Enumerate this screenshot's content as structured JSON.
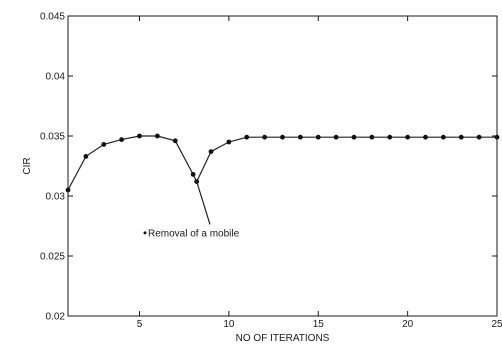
{
  "chart_data": {
    "type": "line",
    "title": "",
    "xlabel": "NO OF ITERATIONS",
    "ylabel": "CIR",
    "xlim": [
      1,
      25
    ],
    "ylim": [
      0.02,
      0.045
    ],
    "x_ticks": [
      5,
      10,
      15,
      20,
      25
    ],
    "x_tick_labels": [
      "5",
      "10",
      "15",
      "20",
      "25"
    ],
    "y_ticks": [
      0.02,
      0.025,
      0.03,
      0.035,
      0.04,
      0.045
    ],
    "y_tick_labels": [
      "0.02",
      "0.025",
      "0.03",
      "0.035",
      "0.04",
      "0.045"
    ],
    "grid": false,
    "series": [
      {
        "x": [
          1,
          2,
          3,
          4,
          5,
          6,
          7,
          8,
          8.2,
          9,
          10,
          11,
          12,
          13,
          14,
          15,
          16,
          17,
          18,
          19,
          20,
          21,
          22,
          23,
          24,
          25
        ],
        "y": [
          0.0305,
          0.0333,
          0.0343,
          0.0347,
          0.035,
          0.035,
          0.0346,
          0.0318,
          0.0312,
          0.0337,
          0.0345,
          0.0349,
          0.0349,
          0.0349,
          0.0349,
          0.0349,
          0.0349,
          0.0349,
          0.0349,
          0.0349,
          0.0349,
          0.0349,
          0.0349,
          0.0349,
          0.0349,
          0.0349
        ]
      }
    ],
    "annotations": [
      {
        "text": "Removal of a mobile",
        "target_x": 8.2,
        "target_y": 0.0312,
        "text_x": 0.8,
        "text_y": 0.0268
      }
    ],
    "colors": {
      "line": "#222222",
      "marker": "#111111",
      "axis": "#1a1a1a"
    }
  }
}
